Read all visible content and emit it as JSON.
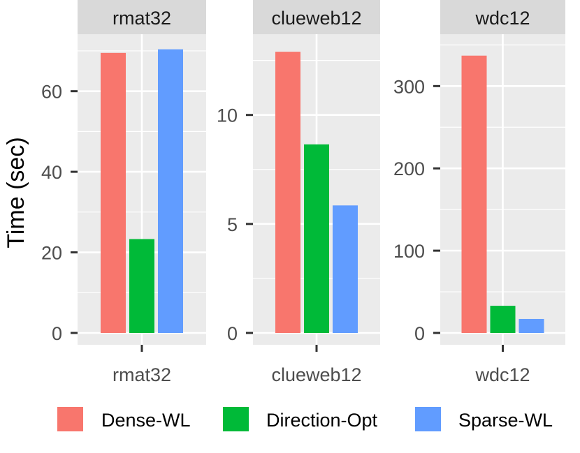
{
  "chart_data": {
    "type": "bar",
    "ylabel": "Time (sec)",
    "xlabel": "",
    "legend": {
      "position": "bottom",
      "entries": [
        "Dense-WL",
        "Direction-Opt",
        "Sparse-WL"
      ]
    },
    "series_colors": {
      "Dense-WL": "#F8766D",
      "Direction-Opt": "#00BA38",
      "Sparse-WL": "#619CFF"
    },
    "colors": {
      "panel_bg": "#EBEBEB",
      "strip_bg": "#D9D9D9",
      "grid": "#FFFFFF",
      "axis_text": "#4D4D4D",
      "tick": "#333333"
    },
    "facets": [
      {
        "title": "rmat32",
        "category": "rmat32",
        "ylim": [
          0,
          72.5
        ],
        "yticks": [
          0,
          20,
          40,
          60
        ],
        "series": [
          {
            "name": "Dense-WL",
            "value": 69.5
          },
          {
            "name": "Direction-Opt",
            "value": 23.3
          },
          {
            "name": "Sparse-WL",
            "value": 70.4
          }
        ]
      },
      {
        "title": "clueweb12",
        "category": "clueweb12",
        "ylim": [
          0,
          13.4
        ],
        "yticks": [
          0,
          5,
          10
        ],
        "series": [
          {
            "name": "Dense-WL",
            "value": 12.9
          },
          {
            "name": "Direction-Opt",
            "value": 8.65
          },
          {
            "name": "Sparse-WL",
            "value": 5.85
          }
        ]
      },
      {
        "title": "wdc12",
        "category": "wdc12",
        "ylim": [
          0,
          355
        ],
        "yticks": [
          0,
          100,
          200,
          300
        ],
        "series": [
          {
            "name": "Dense-WL",
            "value": 337
          },
          {
            "name": "Direction-Opt",
            "value": 33
          },
          {
            "name": "Sparse-WL",
            "value": 17
          }
        ]
      }
    ]
  }
}
